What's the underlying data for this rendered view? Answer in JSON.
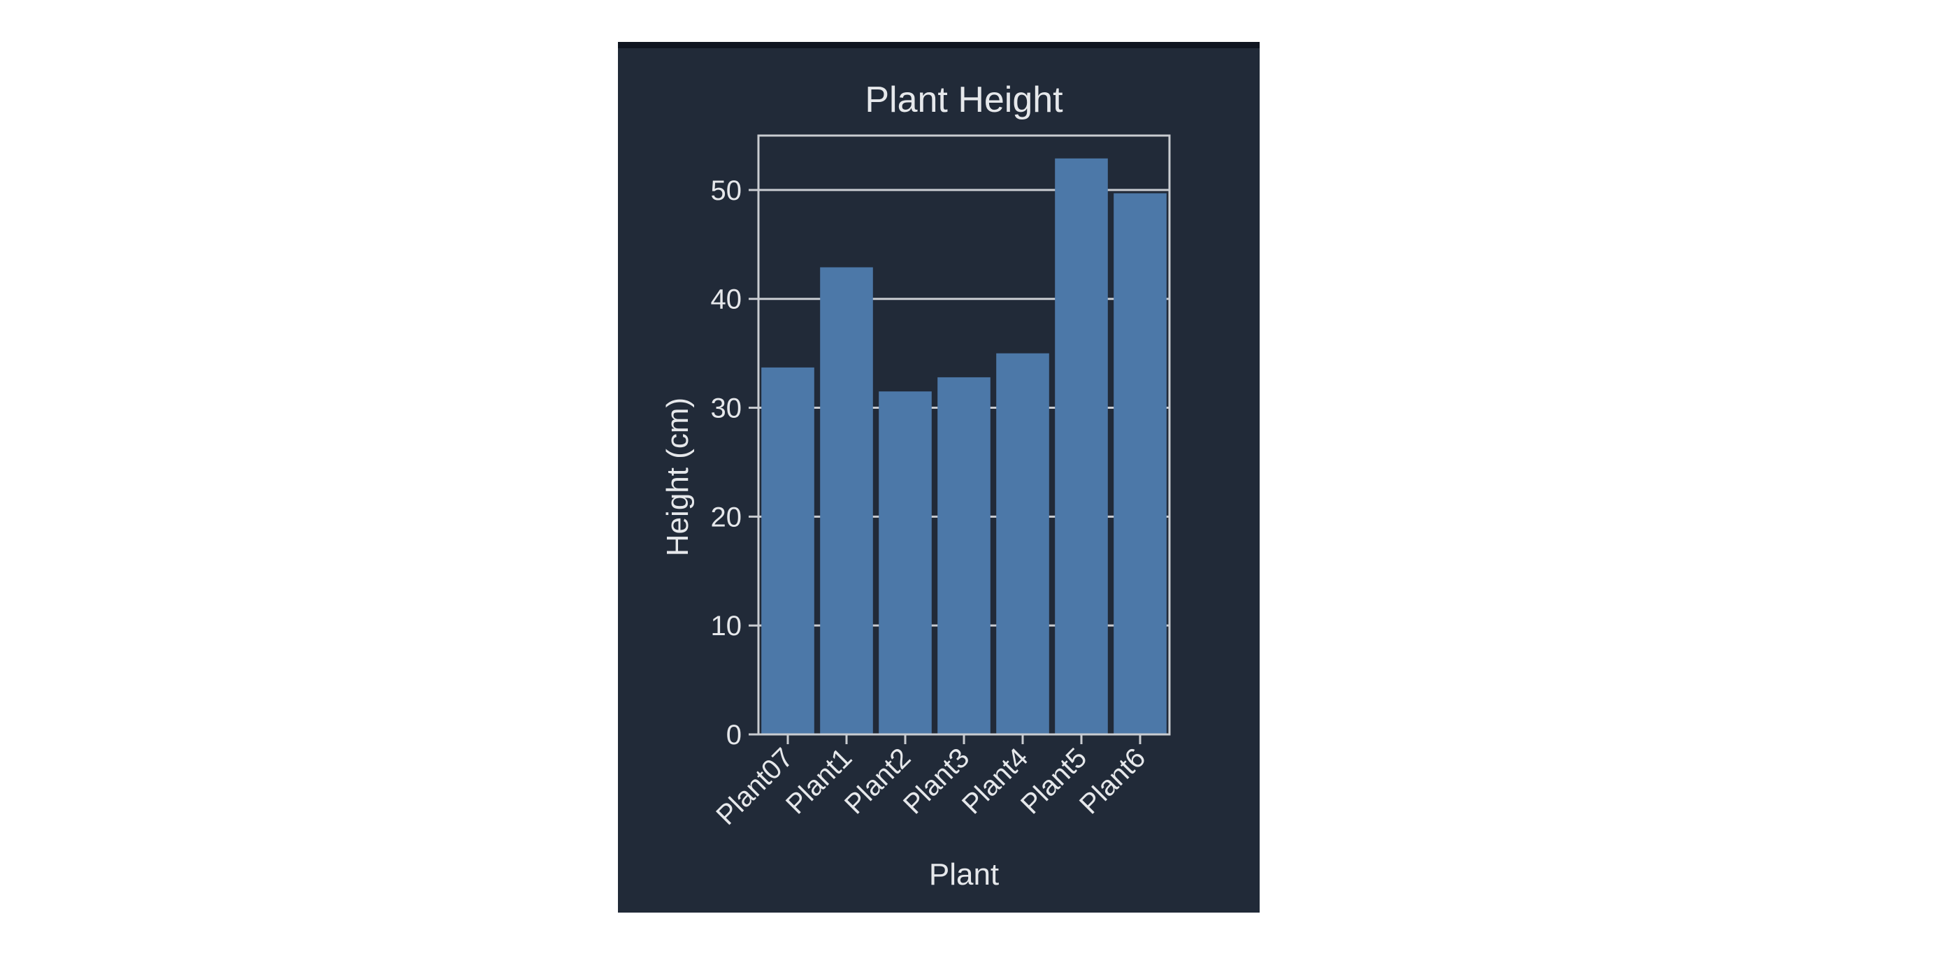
{
  "chart_data": {
    "type": "bar",
    "title": "Plant Height",
    "xlabel": "Plant",
    "ylabel": "Height (cm)",
    "categories": [
      "Plant07",
      "Plant1",
      "Plant2",
      "Plant3",
      "Plant4",
      "Plant5",
      "Plant6"
    ],
    "values": [
      33.7,
      42.9,
      31.5,
      32.8,
      35.0,
      52.9,
      49.7
    ],
    "ylim": [
      0,
      55
    ],
    "yticks": [
      0,
      10,
      20,
      30,
      40,
      50
    ],
    "grid": true,
    "legend": "none",
    "colors": {
      "background": "#212a38",
      "bar": "#4c78a8",
      "axis": "#c9ccd1",
      "grid": "#c9ccd1",
      "text": "#e6e8eb"
    }
  }
}
